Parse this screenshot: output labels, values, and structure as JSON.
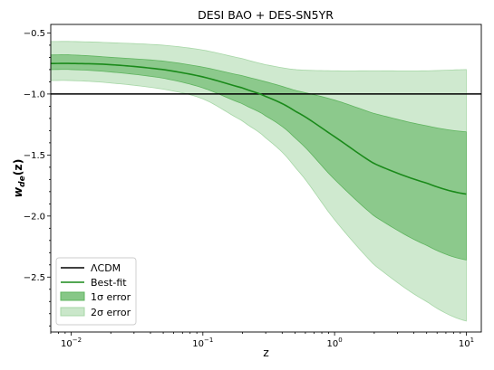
{
  "chart_data": {
    "type": "area",
    "title": "DESI BAO + DES-SN5YR",
    "xlabel": "z",
    "ylabel_main": "w",
    "ylabel_sub": "de",
    "ylabel_arg": "(z)",
    "x_scale": "log",
    "xlim": [
      0.007,
      13
    ],
    "ylim": [
      -2.95,
      -0.43
    ],
    "x_ticks": [
      {
        "value": 0.01,
        "base": "10",
        "exp": "−2"
      },
      {
        "value": 0.1,
        "base": "10",
        "exp": "−1"
      },
      {
        "value": 1,
        "base": "10",
        "exp": "0"
      },
      {
        "value": 10,
        "base": "10",
        "exp": "1"
      }
    ],
    "y_ticks": [
      {
        "value": -0.5,
        "label": "−0.5"
      },
      {
        "value": -1.0,
        "label": "−1.0"
      },
      {
        "value": -1.5,
        "label": "−1.5"
      },
      {
        "value": -2.0,
        "label": "−2.0"
      },
      {
        "value": -2.5,
        "label": "−2.5"
      }
    ],
    "reference_line": {
      "name": "ΛCDM",
      "y": -1.0,
      "color": "#000000"
    },
    "z": [
      0.007,
      0.01,
      0.02,
      0.05,
      0.1,
      0.2,
      0.3,
      0.5,
      1,
      2,
      5,
      10
    ],
    "best_fit": {
      "name": "Best-fit",
      "color": "#1a8a1a",
      "values": [
        -0.75,
        -0.75,
        -0.76,
        -0.8,
        -0.86,
        -0.95,
        -1.02,
        -1.14,
        -1.35,
        -1.57,
        -1.73,
        -1.82
      ]
    },
    "band_1sigma": {
      "name": "1σ error",
      "color": "#5fb45f",
      "lower": [
        -0.8,
        -0.8,
        -0.82,
        -0.87,
        -0.95,
        -1.08,
        -1.18,
        -1.36,
        -1.7,
        -2.0,
        -2.24,
        -2.36
      ],
      "upper": [
        -0.68,
        -0.68,
        -0.7,
        -0.73,
        -0.78,
        -0.85,
        -0.9,
        -0.97,
        -1.05,
        -1.16,
        -1.26,
        -1.31
      ]
    },
    "band_2sigma": {
      "name": "2σ error",
      "color": "#a7d7a7",
      "lower": [
        -0.89,
        -0.89,
        -0.91,
        -0.96,
        -1.04,
        -1.22,
        -1.36,
        -1.6,
        -2.03,
        -2.4,
        -2.7,
        -2.86
      ],
      "upper": [
        -0.57,
        -0.57,
        -0.58,
        -0.6,
        -0.64,
        -0.71,
        -0.76,
        -0.8,
        -0.81,
        -0.81,
        -0.81,
        -0.8
      ]
    },
    "legend": {
      "placement": "lower-left",
      "entries": [
        "ΛCDM",
        "Best-fit",
        "1σ error",
        "2σ error"
      ]
    }
  }
}
